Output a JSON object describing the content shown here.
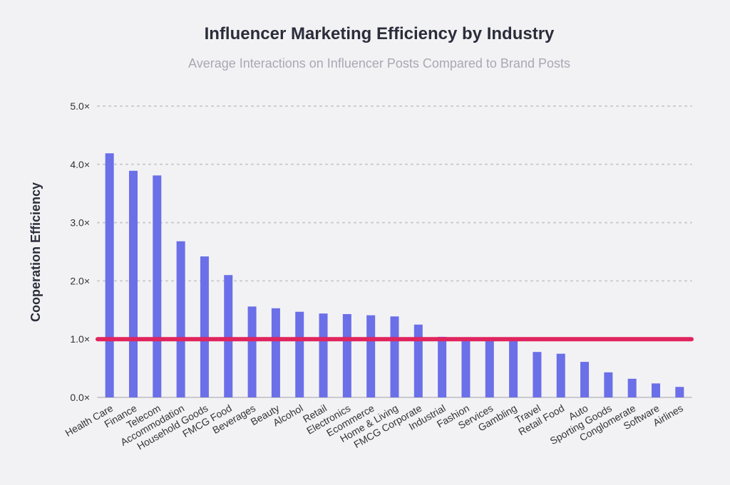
{
  "chart_data": {
    "type": "bar",
    "title": "Influencer Marketing Efficiency by Industry",
    "subtitle": "Average Interactions on Influencer Posts Compared to Brand Posts",
    "y_label": "Cooperation Efficiency",
    "categories": [
      "Health Care",
      "Finance",
      "Telecom",
      "Accommodation",
      "Household Goods",
      "FMCG Food",
      "Beverages",
      "Beauty",
      "Alcohol",
      "Retail",
      "Electronics",
      "Ecommerce",
      "Home & Living",
      "FMCG Corporate",
      "Industrial",
      "Fashion",
      "Services",
      "Gambling",
      "Travel",
      "Retail Food",
      "Auto",
      "Sporting Goods",
      "Conglomerate",
      "Software",
      "Airlines"
    ],
    "values": [
      4.19,
      3.89,
      3.81,
      2.68,
      2.42,
      2.1,
      1.56,
      1.53,
      1.47,
      1.44,
      1.43,
      1.41,
      1.39,
      1.25,
      1.04,
      0.99,
      0.98,
      0.97,
      0.78,
      0.75,
      0.61,
      0.43,
      0.32,
      0.24,
      0.18
    ],
    "color": "#6b6fe8",
    "ylim": [
      0,
      5
    ],
    "yticks": [
      {
        "value": 0,
        "label": "0.0×"
      },
      {
        "value": 1,
        "label": "1.0×"
      },
      {
        "value": 2,
        "label": "2.0×"
      },
      {
        "value": 3,
        "label": "3.0×"
      },
      {
        "value": 4,
        "label": "4.0×"
      },
      {
        "value": 5,
        "label": "5.0×"
      }
    ],
    "grid": true,
    "reference_line": {
      "value": 1,
      "color": "#e0245e"
    }
  }
}
